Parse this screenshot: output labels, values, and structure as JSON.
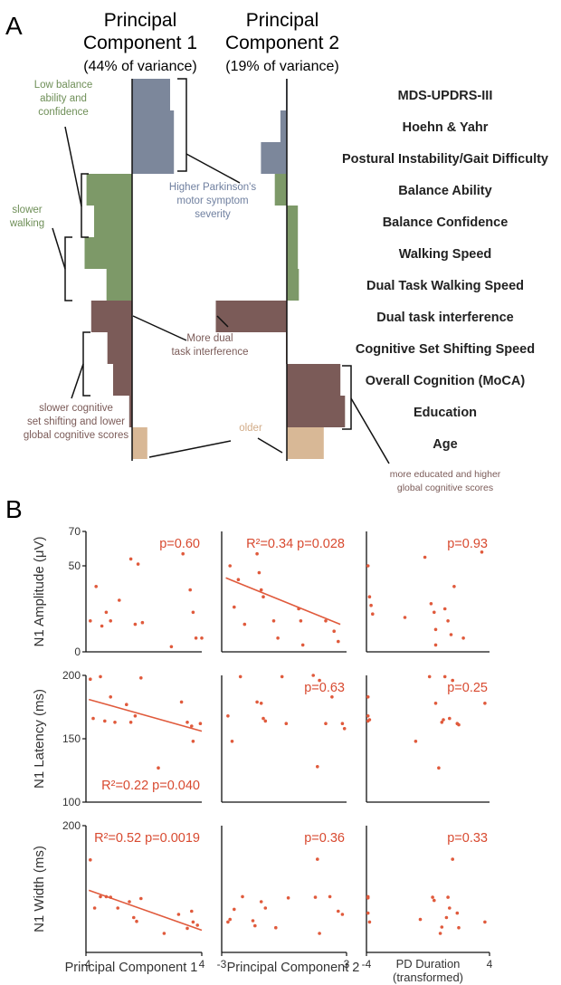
{
  "panel_a": {
    "letter": "A",
    "pc1": {
      "title_line1": "Principal",
      "title_line2": "Component 1",
      "variance": "(44% of variance)"
    },
    "pc2": {
      "title_line1": "Principal",
      "title_line2": "Component 2",
      "variance": "(19% of variance)"
    },
    "annotations": {
      "low_balance": [
        "Low balance",
        "ability and",
        "confidence"
      ],
      "slower_walking": [
        "slower",
        "walking"
      ],
      "motor": [
        "Higher Parkinson's",
        "motor symptom",
        "severity"
      ],
      "dual": [
        "More dual",
        "task interference"
      ],
      "cognitive": [
        "slower cognitive",
        "set shifting and lower",
        "global cognitive scores"
      ],
      "older": [
        "older"
      ],
      "educated": [
        "more educated and higher",
        "global cognitive scores"
      ]
    },
    "colors": {
      "motor": "#7c879b",
      "balance": "#7d9968",
      "cognitive": "#7b5b58",
      "age": "#d8b896",
      "green_text": "#6f8f58",
      "blue_text": "#7080a0",
      "brown_text": "#7b5b58",
      "tan_text": "#d2ac88"
    }
  },
  "panel_b": {
    "letter": "B",
    "colors": {
      "points": "#e05a3c",
      "text": "#d84a30"
    }
  },
  "chart_data": [
    {
      "type": "bar",
      "orientation": "horizontal",
      "title": "Principal Component 1 (44% of variance)",
      "categories": [
        "MDS-UPDRS-III",
        "Hoehn & Yahr",
        "Postural Instability/Gait Difficulty",
        "Balance Ability",
        "Balance Confidence",
        "Walking Speed",
        "Dual Task Walking Speed",
        "Dual task interference",
        "Cognitive Set Shifting Speed",
        "Overall Cognition (MoCA)",
        "Education",
        "Age"
      ],
      "values": [
        0.4,
        0.44,
        0.44,
        -0.48,
        -0.4,
        -0.5,
        -0.27,
        -0.43,
        -0.26,
        -0.2,
        -0.03,
        0.16
      ],
      "category_groups": [
        "motor",
        "motor",
        "motor",
        "balance",
        "balance",
        "balance",
        "balance",
        "cognitive",
        "cognitive",
        "cognitive",
        "cognitive",
        "age"
      ]
    },
    {
      "type": "bar",
      "orientation": "horizontal",
      "title": "Principal Component 2 (19% of variance)",
      "categories": [
        "MDS-UPDRS-III",
        "Hoehn & Yahr",
        "Postural Instability/Gait Difficulty",
        "Balance Ability",
        "Balance Confidence",
        "Walking Speed",
        "Dual Task Walking Speed",
        "Dual task interference",
        "Cognitive Set Shifting Speed",
        "Overall Cognition (MoCA)",
        "Education",
        "Age"
      ],
      "values": [
        -0.01,
        -0.07,
        -0.28,
        -0.13,
        0.12,
        0.12,
        0.13,
        -0.77,
        -0.01,
        0.58,
        0.63,
        0.4
      ],
      "category_groups": [
        "motor",
        "motor",
        "motor",
        "balance",
        "balance",
        "balance",
        "balance",
        "cognitive",
        "cognitive",
        "cognitive",
        "cognitive",
        "age"
      ]
    },
    {
      "type": "scatter",
      "ylabel": "N1 Amplitude (μV)",
      "xlabel": "",
      "xlim": [
        -4,
        4
      ],
      "ylim": [
        0,
        70
      ],
      "yticks": [
        "0",
        "50",
        "70"
      ],
      "xticks": [],
      "annotation": "p=0.60",
      "points": [
        [
          -3.7,
          18
        ],
        [
          -3.3,
          38
        ],
        [
          -2.9,
          15
        ],
        [
          -2.6,
          23
        ],
        [
          -2.3,
          18
        ],
        [
          -1.7,
          30
        ],
        [
          -0.9,
          54
        ],
        [
          -0.6,
          16
        ],
        [
          -0.4,
          51
        ],
        [
          -0.1,
          17
        ],
        [
          1.9,
          3
        ],
        [
          2.7,
          57
        ],
        [
          3.2,
          36
        ],
        [
          3.4,
          23
        ],
        [
          3.6,
          8
        ],
        [
          4.0,
          8
        ]
      ],
      "fit": null
    },
    {
      "type": "scatter",
      "ylabel": "",
      "xlabel": "",
      "xlim": [
        -3,
        3
      ],
      "ylim": [
        0,
        70
      ],
      "yticks": [],
      "xticks": [],
      "annotation": "R²=0.34 p=0.028",
      "points": [
        [
          -2.6,
          50
        ],
        [
          -2.4,
          26
        ],
        [
          -2.2,
          42
        ],
        [
          -1.9,
          16
        ],
        [
          -1.3,
          57
        ],
        [
          -1.2,
          46
        ],
        [
          -1.1,
          36
        ],
        [
          -1.0,
          32
        ],
        [
          -0.5,
          18
        ],
        [
          -0.3,
          8
        ],
        [
          0.7,
          25
        ],
        [
          0.8,
          18
        ],
        [
          0.9,
          4
        ],
        [
          2.0,
          18
        ],
        [
          2.4,
          12
        ],
        [
          2.6,
          6
        ]
      ],
      "fit": {
        "x": [
          -2.8,
          2.7
        ],
        "y": [
          43,
          16
        ]
      }
    },
    {
      "type": "scatter",
      "ylabel": "",
      "xlabel": "",
      "xlim": [
        -4,
        4
      ],
      "ylim": [
        0,
        70
      ],
      "yticks": [],
      "xticks": [],
      "annotation": "p=0.93",
      "points": [
        [
          -3.9,
          50
        ],
        [
          -3.8,
          32
        ],
        [
          -3.7,
          27
        ],
        [
          -3.6,
          22
        ],
        [
          -1.5,
          20
        ],
        [
          -0.2,
          55
        ],
        [
          0.2,
          28
        ],
        [
          0.4,
          23
        ],
        [
          0.5,
          13
        ],
        [
          0.5,
          4
        ],
        [
          1.1,
          25
        ],
        [
          1.3,
          18
        ],
        [
          1.5,
          10
        ],
        [
          1.7,
          38
        ],
        [
          3.5,
          58
        ],
        [
          2.3,
          8
        ]
      ],
      "fit": null
    },
    {
      "type": "scatter",
      "ylabel": "N1 Latency (ms)",
      "xlabel": "",
      "xlim": [
        -4,
        4
      ],
      "ylim": [
        100,
        200
      ],
      "yticks": [
        "100",
        "150",
        "200"
      ],
      "xticks": [],
      "annotation": "R²=0.22 p=0.040",
      "points": [
        [
          -3.7,
          197
        ],
        [
          -3.5,
          166
        ],
        [
          -3.0,
          199
        ],
        [
          -2.7,
          164
        ],
        [
          -2.3,
          183
        ],
        [
          -2.0,
          163
        ],
        [
          -1.2,
          177
        ],
        [
          -0.9,
          163
        ],
        [
          -0.6,
          168
        ],
        [
          -0.2,
          198
        ],
        [
          1.0,
          127
        ],
        [
          2.6,
          179
        ],
        [
          3.0,
          163
        ],
        [
          3.3,
          160
        ],
        [
          3.4,
          148
        ],
        [
          3.9,
          162
        ]
      ],
      "fit": {
        "x": [
          -3.8,
          4.0
        ],
        "y": [
          181,
          156
        ]
      }
    },
    {
      "type": "scatter",
      "ylabel": "",
      "xlabel": "",
      "xlim": [
        -3,
        3
      ],
      "ylim": [
        100,
        200
      ],
      "yticks": [],
      "xticks": [],
      "annotation": "p=0.63",
      "points": [
        [
          -2.7,
          168
        ],
        [
          -2.5,
          148
        ],
        [
          -2.1,
          199
        ],
        [
          -1.3,
          179
        ],
        [
          -1.1,
          178
        ],
        [
          -1.0,
          166
        ],
        [
          -0.9,
          164
        ],
        [
          -0.1,
          199
        ],
        [
          0.1,
          162
        ],
        [
          1.4,
          200
        ],
        [
          1.6,
          128
        ],
        [
          1.7,
          196
        ],
        [
          2.0,
          162
        ],
        [
          2.3,
          183
        ],
        [
          2.8,
          162
        ],
        [
          2.9,
          158
        ]
      ],
      "fit": null
    },
    {
      "type": "scatter",
      "ylabel": "",
      "xlabel": "",
      "xlim": [
        -4,
        4
      ],
      "ylim": [
        100,
        200
      ],
      "yticks": [],
      "xticks": [],
      "annotation": "p=0.25",
      "points": [
        [
          -3.9,
          183
        ],
        [
          -3.9,
          168
        ],
        [
          -3.9,
          164
        ],
        [
          -3.8,
          165
        ],
        [
          -0.8,
          148
        ],
        [
          0.1,
          199
        ],
        [
          0.5,
          178
        ],
        [
          0.7,
          127
        ],
        [
          0.9,
          163
        ],
        [
          1.1,
          199
        ],
        [
          1.4,
          166
        ],
        [
          1.6,
          196
        ],
        [
          1.9,
          162
        ],
        [
          2.0,
          161
        ],
        [
          3.7,
          178
        ],
        [
          1.0,
          165
        ]
      ],
      "fit": null
    },
    {
      "type": "scatter",
      "ylabel": "N1 Width (ms)",
      "xlabel": "Principal Component 1",
      "xlim": [
        -4,
        4
      ],
      "ylim": [
        0,
        200
      ],
      "yticks": [
        "200"
      ],
      "xticks": [
        "-4",
        "4"
      ],
      "annotation": "R²=0.52 p=0.0019",
      "points": [
        [
          -3.7,
          146
        ],
        [
          -3.4,
          70
        ],
        [
          -3.0,
          88
        ],
        [
          -2.6,
          88
        ],
        [
          -2.3,
          87
        ],
        [
          -1.8,
          70
        ],
        [
          -1.0,
          80
        ],
        [
          -0.7,
          55
        ],
        [
          -0.5,
          49
        ],
        [
          -0.2,
          85
        ],
        [
          1.4,
          30
        ],
        [
          2.4,
          60
        ],
        [
          3.0,
          38
        ],
        [
          3.3,
          65
        ],
        [
          3.4,
          48
        ],
        [
          3.7,
          43
        ]
      ],
      "fit": {
        "x": [
          -3.8,
          4.0
        ],
        "y": [
          98,
          35
        ]
      }
    },
    {
      "type": "scatter",
      "ylabel": "",
      "xlabel": "Principal Component 2",
      "xlim": [
        -3,
        3
      ],
      "ylim": [
        0,
        200
      ],
      "yticks": [],
      "xticks": [
        "-3",
        "3"
      ],
      "annotation": "p=0.36",
      "points": [
        [
          -2.7,
          48
        ],
        [
          -2.6,
          52
        ],
        [
          -2.4,
          68
        ],
        [
          -2.0,
          88
        ],
        [
          -1.5,
          50
        ],
        [
          -1.4,
          42
        ],
        [
          -1.1,
          80
        ],
        [
          -0.9,
          70
        ],
        [
          -0.4,
          39
        ],
        [
          0.2,
          86
        ],
        [
          1.5,
          87
        ],
        [
          1.6,
          147
        ],
        [
          1.7,
          30
        ],
        [
          2.2,
          88
        ],
        [
          2.6,
          65
        ],
        [
          2.8,
          60
        ]
      ],
      "fit": null
    },
    {
      "type": "scatter",
      "ylabel": "",
      "xlabel": "PD Duration (transformed)",
      "xlim": [
        -4,
        4
      ],
      "ylim": [
        0,
        200
      ],
      "yticks": [],
      "xticks": [
        "-4",
        "4"
      ],
      "annotation": "p=0.33",
      "points": [
        [
          -3.9,
          86
        ],
        [
          -3.9,
          88
        ],
        [
          -3.9,
          62
        ],
        [
          -3.8,
          48
        ],
        [
          -0.5,
          52
        ],
        [
          0.3,
          87
        ],
        [
          0.4,
          82
        ],
        [
          0.8,
          30
        ],
        [
          0.9,
          40
        ],
        [
          1.2,
          55
        ],
        [
          1.3,
          87
        ],
        [
          1.4,
          70
        ],
        [
          1.6,
          147
        ],
        [
          1.9,
          62
        ],
        [
          2.0,
          39
        ],
        [
          3.7,
          48
        ]
      ],
      "fit": null
    }
  ]
}
